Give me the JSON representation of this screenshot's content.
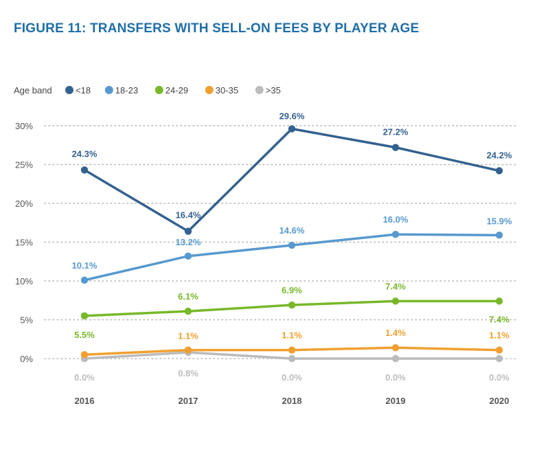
{
  "title": "FIGURE 11: TRANSFERS WITH SELL-ON FEES BY PLAYER AGE",
  "legend_title": "Age band",
  "chart_data": {
    "type": "line",
    "title": "FIGURE 11: TRANSFERS WITH SELL-ON FEES BY PLAYER AGE",
    "xlabel": "",
    "ylabel": "",
    "categories": [
      "2016",
      "2017",
      "2018",
      "2019",
      "2020"
    ],
    "ylim": [
      0,
      30
    ],
    "yticks": [
      0,
      5,
      10,
      15,
      20,
      25,
      30
    ],
    "ytick_labels": [
      "0%",
      "5%",
      "10%",
      "15%",
      "20%",
      "25%",
      "30%"
    ],
    "grid": "dotted-horizontal",
    "legend": "top-left",
    "series": [
      {
        "name": "<18",
        "color": "#34618f",
        "values": [
          24.3,
          16.4,
          29.6,
          27.2,
          24.2
        ],
        "labels": [
          "24.3%",
          "16.4%",
          "29.6%",
          "27.2%",
          "24.2%"
        ]
      },
      {
        "name": "18-23",
        "color": "#5699cf",
        "values": [
          10.1,
          13.2,
          14.6,
          16.0,
          15.9
        ],
        "labels": [
          "10.1%",
          "13.2%",
          "14.6%",
          "16.0%",
          "15.9%"
        ]
      },
      {
        "name": "24-29",
        "color": "#78b82a",
        "values": [
          5.5,
          6.1,
          6.9,
          7.4,
          7.4
        ],
        "labels": [
          "5.5%",
          "6.1%",
          "6.9%",
          "7.4%",
          "7.4%"
        ]
      },
      {
        "name": "30-35",
        "color": "#f0a030",
        "values": [
          0.5,
          1.1,
          1.1,
          1.4,
          1.1
        ],
        "labels": [
          "",
          "1.1%",
          "1.1%",
          "1.4%",
          "1.1%"
        ]
      },
      {
        "name": ">35",
        "color": "#bbbbbb",
        "values": [
          0.0,
          0.8,
          0.0,
          0.0,
          0.0
        ],
        "labels": [
          "0.0%",
          "0.8%",
          "0.0%",
          "0.0%",
          "0.0%"
        ]
      }
    ]
  }
}
